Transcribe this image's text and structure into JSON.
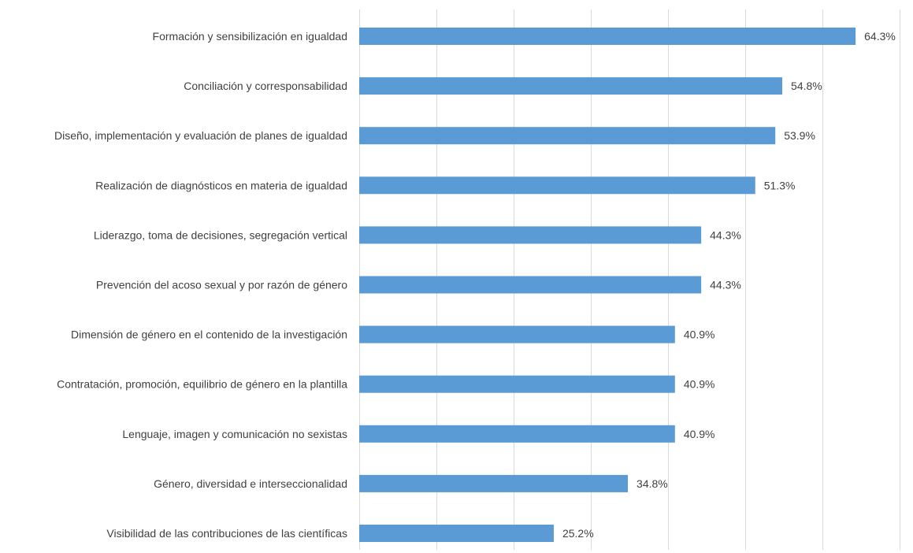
{
  "chart_data": {
    "type": "bar",
    "orientation": "horizontal",
    "title": "",
    "xlabel": "",
    "ylabel": "",
    "xlim": [
      0,
      70
    ],
    "grid": "vertical",
    "legend": "none",
    "bar_color": "#5b9bd5",
    "categories": [
      "Formación y sensibilización en igualdad",
      "Conciliación y corresponsabilidad",
      "Diseño, implementación y evaluación de planes de igualdad",
      "Realización de diagnósticos en materia de igualdad ",
      "Liderazgo, toma de decisiones, segregación vertical",
      "Prevención del acoso sexual y por razón de género",
      "Dimensión de género en el contenido de la investigación",
      "Contratación, promoción, equilibrio de género en la plantilla",
      "Lenguaje, imagen y comunicación no sexistas",
      "Género, diversidad e interseccionalidad",
      "Visibilidad de las contribuciones de las científicas"
    ],
    "values": [
      64.3,
      54.8,
      53.9,
      51.3,
      44.3,
      44.3,
      40.9,
      40.9,
      40.9,
      34.8,
      25.2
    ],
    "value_labels": [
      "64.3%",
      "54.8%",
      "53.9%",
      "51.3%",
      "44.3%",
      "44.3%",
      "40.9%",
      "40.9%",
      "40.9%",
      "34.8%",
      "25.2%"
    ]
  }
}
